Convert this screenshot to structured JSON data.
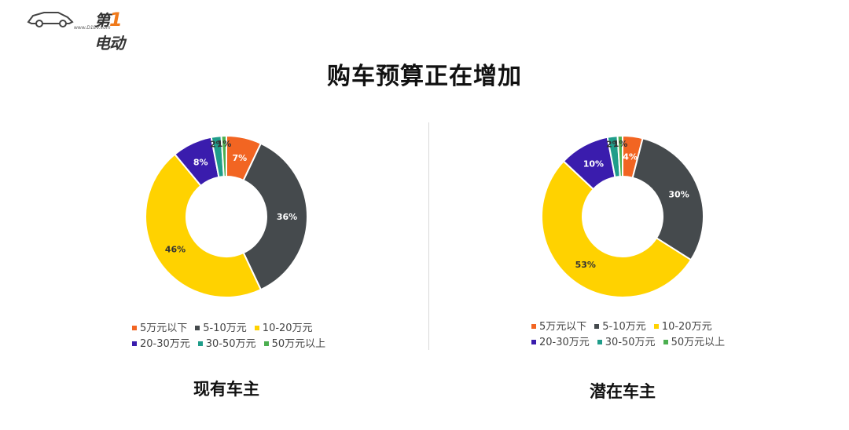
{
  "logo": {
    "text_pre": "第",
    "text_one": "1",
    "text_post": "电动",
    "url": "www.D1EV.com"
  },
  "title": "购车预算正在增加",
  "colors": [
    "#f26522",
    "#454a4d",
    "#ffd200",
    "#3a1cad",
    "#1f9d8a",
    "#4caf50"
  ],
  "chart_data": [
    {
      "type": "pie",
      "title": "现有车主",
      "categories": [
        "5万元以下",
        "5-10万元",
        "10-20万元",
        "20-30万元",
        "30-50万元",
        "50万元以上"
      ],
      "values": [
        7,
        36,
        46,
        8,
        2,
        1
      ],
      "labels": [
        "7%",
        "36%",
        "46%",
        "8%",
        "2%",
        "1%"
      ],
      "legend": "bottom"
    },
    {
      "type": "pie",
      "title": "潜在车主",
      "categories": [
        "5万元以下",
        "5-10万元",
        "10-20万元",
        "20-30万元",
        "30-50万元",
        "50万元以上"
      ],
      "values": [
        4,
        30,
        53,
        10,
        2,
        1
      ],
      "labels": [
        "4%",
        "30%",
        "53%",
        "10%",
        "2%",
        "1%"
      ],
      "legend": "bottom"
    }
  ]
}
